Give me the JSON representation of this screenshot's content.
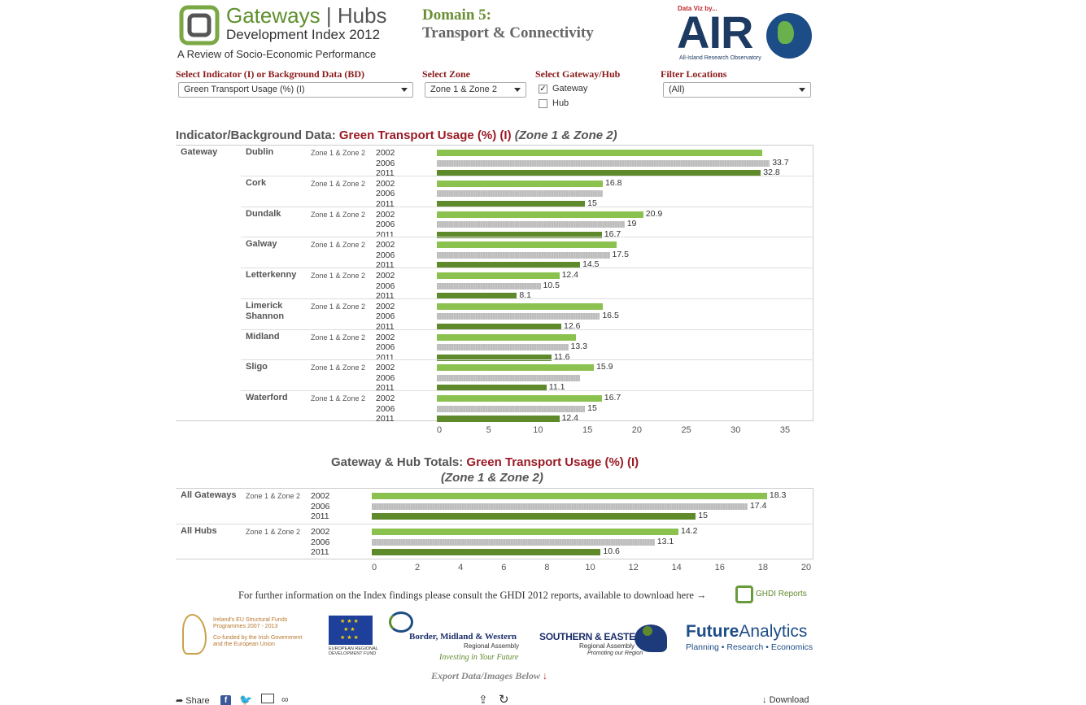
{
  "header": {
    "logo_title_green": "Gateways",
    "logo_title_sep": "|",
    "logo_title_grey": "Hubs",
    "logo_subtitle": "Development Index 2012",
    "logo_review": "A Review of Socio-Economic Performance",
    "domain_line1": "Domain 5:",
    "domain_line2": "Transport & Connectivity",
    "airo_small": "Data Viz by...",
    "airo_name": "AIR",
    "airo_caption": "All-Island Research Observatory"
  },
  "filters": {
    "indicator_label": "Select Indicator (I) or Background Data (BD)",
    "indicator_value": "Green Transport Usage (%) (I)",
    "zone_label": "Select Zone",
    "zone_value": "Zone 1 & Zone 2",
    "gateway_hub_label": "Select Gateway/Hub",
    "gateway_option": "Gateway",
    "gateway_checked": true,
    "hub_option": "Hub",
    "hub_checked": false,
    "location_label": "Filter Locations",
    "location_value": "(All)"
  },
  "chart1": {
    "title_prefix": "Indicator/Background Data:",
    "title_indicator": "Green Transport Usage (%) (I)",
    "title_zone": "(Zone 1 & Zone 2)"
  },
  "chart2": {
    "title_prefix": "Gateway & Hub Totals:",
    "title_indicator": "Green Transport Usage (%) (I)",
    "title_zone": "(Zone 1 & Zone 2)"
  },
  "colors": {
    "y2002": "#8bc14f",
    "y2006": "#c2c2c2",
    "y2011": "#5f8a2c",
    "title_red": "#9a1b25"
  },
  "chart_data": [
    {
      "type": "bar",
      "orientation": "horizontal",
      "group_label": "Gateway",
      "zone": "Zone 1 & Zone 2",
      "years": [
        "2002",
        "2006",
        "2011"
      ],
      "xlim": [
        0,
        35
      ],
      "xticks": [
        0,
        5,
        10,
        15,
        20,
        25,
        30,
        35
      ],
      "locations": [
        {
          "name": "Dublin",
          "values": [
            32.9,
            33.7,
            32.8
          ],
          "labels": [
            "",
            "33.7",
            "32.8"
          ]
        },
        {
          "name": "Cork",
          "values": [
            16.8,
            16.8,
            15
          ],
          "labels": [
            "16.8",
            "",
            "15"
          ]
        },
        {
          "name": "Dundalk",
          "values": [
            20.9,
            19,
            16.7
          ],
          "labels": [
            "20.9",
            "19",
            "16.7"
          ]
        },
        {
          "name": "Galway",
          "values": [
            18.2,
            17.5,
            14.5
          ],
          "labels": [
            "",
            "17.5",
            "14.5"
          ]
        },
        {
          "name": "Letterkenny",
          "values": [
            12.4,
            10.5,
            8.1
          ],
          "labels": [
            "12.4",
            "10.5",
            "8.1"
          ]
        },
        {
          "name": "Limerick Shannon",
          "values": [
            16.8,
            16.5,
            12.6
          ],
          "labels": [
            "",
            "16.5",
            "12.6"
          ]
        },
        {
          "name": "Midland",
          "values": [
            14.1,
            13.3,
            11.6
          ],
          "labels": [
            "",
            "13.3",
            "11.6"
          ]
        },
        {
          "name": "Sligo",
          "values": [
            15.9,
            14.5,
            11.1
          ],
          "labels": [
            "15.9",
            "",
            "11.1"
          ]
        },
        {
          "name": "Waterford",
          "values": [
            16.7,
            15,
            12.4
          ],
          "labels": [
            "16.7",
            "15",
            "12.4"
          ]
        }
      ]
    },
    {
      "type": "bar",
      "orientation": "horizontal",
      "zone": "Zone 1 & Zone 2",
      "years": [
        "2002",
        "2006",
        "2011"
      ],
      "xlim": [
        0,
        20
      ],
      "xticks": [
        0,
        2,
        4,
        6,
        8,
        10,
        12,
        14,
        16,
        18,
        20
      ],
      "locations": [
        {
          "name": "All Gateways",
          "values": [
            18.3,
            17.4,
            15
          ],
          "labels": [
            "18.3",
            "17.4",
            "15"
          ]
        },
        {
          "name": "All Hubs",
          "values": [
            14.2,
            13.1,
            10.6
          ],
          "labels": [
            "14.2",
            "13.1",
            "10.6"
          ]
        }
      ]
    }
  ],
  "footer": {
    "info_text": "For further information on the Index findings please consult the GHDI 2012 reports, available to download here →",
    "ghdi_label": "GHDI Reports",
    "sfund_line1": "Ireland's EU Structural Funds",
    "sfund_line2": "Programmes 2007 - 2013",
    "sfund_line3": "Co-funded by the Irish Government",
    "sfund_line4": "and the European Union",
    "eu_line1": "EUROPEAN REGIONAL",
    "eu_line2": "DEVELOPMENT FUND",
    "bmw_line1": "Border, Midland & Western",
    "bmw_line2": "Regional Assembly",
    "bmw_line3": "Investing in Your Future",
    "se_line1": "SOUTHERN & EASTERN",
    "se_line2": "Regional Assembly",
    "se_line3": "Promoting our Region",
    "fa_line1a": "Future",
    "fa_line1b": "Analytics",
    "fa_line2": "Planning • Research • Economics",
    "export_text": "Export Data/Images Below",
    "share_label": "Share",
    "download_label": "Download"
  }
}
